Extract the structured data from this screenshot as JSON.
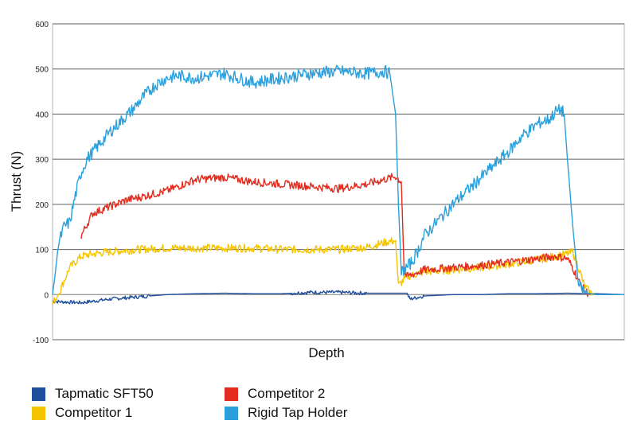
{
  "chart_data": {
    "type": "line",
    "title": "",
    "xlabel": "Depth",
    "ylabel": "Thrust (N)",
    "ylim": [
      -100,
      600
    ],
    "yticks": [
      "600",
      "500",
      "400",
      "300",
      "200",
      "100",
      "0",
      "-100"
    ],
    "ytick_values": [
      600,
      500,
      400,
      300,
      200,
      100,
      0,
      -100
    ],
    "xlim": [
      0,
      100
    ],
    "grid": true,
    "legend_position": "bottom",
    "series": [
      {
        "name": "Tapmatic SFT50",
        "color": "#1f4e9c",
        "x": [
          0,
          5,
          10,
          15,
          20,
          25,
          30,
          35,
          40,
          45,
          50,
          55,
          60,
          62,
          62.5,
          65,
          70,
          75,
          80,
          85,
          90,
          95,
          100
        ],
        "y": [
          -15,
          -18,
          -10,
          -5,
          0,
          2,
          3,
          2,
          2,
          5,
          5,
          3,
          3,
          3,
          -10,
          -3,
          0,
          0,
          2,
          2,
          3,
          2,
          0
        ]
      },
      {
        "name": "Competitor 1",
        "color": "#f5c400",
        "x": [
          0,
          1,
          2,
          3,
          5,
          7,
          10,
          15,
          20,
          25,
          30,
          35,
          40,
          45,
          50,
          55,
          58,
          59,
          60,
          60.5,
          62,
          65,
          70,
          75,
          80,
          85,
          88,
          90,
          91,
          92,
          93,
          94,
          95
        ],
        "y": [
          -20,
          0,
          30,
          60,
          85,
          90,
          95,
          100,
          103,
          103,
          103,
          103,
          100,
          100,
          100,
          105,
          115,
          118,
          120,
          20,
          40,
          50,
          55,
          60,
          68,
          78,
          85,
          90,
          95,
          60,
          20,
          5,
          0
        ]
      },
      {
        "name": "Competitor 2",
        "color": "#e32b1e",
        "x": [
          5,
          7,
          10,
          13,
          15,
          20,
          25,
          30,
          35,
          40,
          45,
          50,
          55,
          58,
          60,
          61,
          61.5,
          62,
          65,
          70,
          75,
          80,
          85,
          88,
          90,
          91,
          92,
          93,
          94
        ],
        "y": [
          130,
          180,
          195,
          210,
          215,
          230,
          255,
          260,
          250,
          245,
          240,
          235,
          245,
          255,
          262,
          250,
          50,
          40,
          55,
          60,
          65,
          72,
          80,
          85,
          80,
          60,
          30,
          10,
          0
        ]
      },
      {
        "name": "Rigid Tap Holder",
        "color": "#2aa0dc",
        "x": [
          0,
          0.5,
          1,
          2,
          3,
          4,
          5,
          6,
          8,
          10,
          12,
          14,
          16,
          18,
          20,
          22,
          25,
          30,
          35,
          40,
          45,
          50,
          55,
          58,
          59,
          60,
          60.5,
          61,
          62,
          63,
          64,
          65,
          70,
          75,
          80,
          82,
          83,
          85,
          87,
          88,
          89,
          89.5,
          90,
          91,
          92,
          93,
          95,
          100
        ],
        "y": [
          0,
          50,
          110,
          150,
          160,
          220,
          270,
          300,
          330,
          360,
          385,
          410,
          440,
          465,
          480,
          485,
          480,
          490,
          470,
          480,
          490,
          495,
          490,
          495,
          490,
          400,
          200,
          50,
          60,
          75,
          100,
          130,
          200,
          260,
          320,
          350,
          360,
          380,
          390,
          405,
          410,
          400,
          310,
          150,
          20,
          5,
          0,
          0
        ]
      }
    ]
  }
}
